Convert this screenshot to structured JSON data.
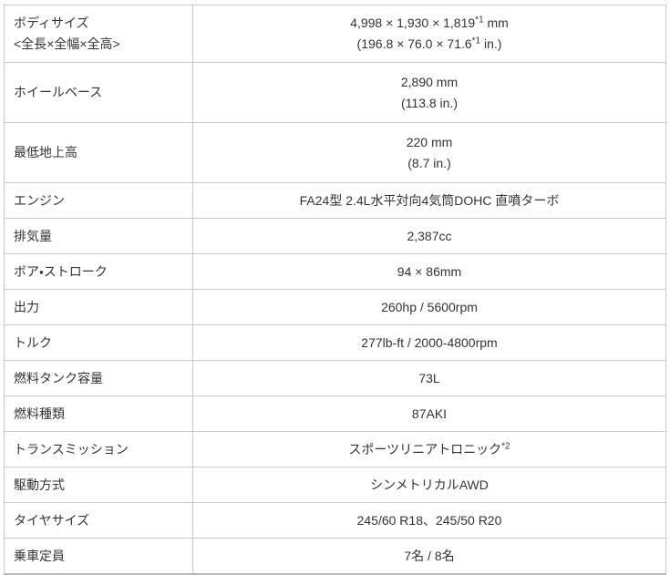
{
  "colors": {
    "border": "#c9c9c9",
    "border_bottom": "#b9b9b9",
    "text": "#333333",
    "background": "#ffffff"
  },
  "table": {
    "rows": [
      {
        "label_lines": [
          "ボディサイズ",
          "<全長×全幅×全高>"
        ],
        "value_lines": [
          {
            "pre": "4,998 × 1,930 × 1,819",
            "sup": "*1",
            "post": " mm"
          },
          {
            "pre": "(196.8 × 76.0 × 71.6",
            "sup": "*1",
            "post": " in.)"
          }
        ]
      },
      {
        "label_lines": [
          "ホイールベース"
        ],
        "value_lines": [
          {
            "pre": "2,890 mm"
          },
          {
            "pre": "(113.8 in.)"
          }
        ]
      },
      {
        "label_lines": [
          "最低地上高"
        ],
        "value_lines": [
          {
            "pre": "220 mm"
          },
          {
            "pre": "(8.7 in.)"
          }
        ]
      },
      {
        "label_lines": [
          "エンジン"
        ],
        "value_lines": [
          {
            "pre": "FA24型 2.4L水平対向4気筒DOHC 直噴ターボ"
          }
        ]
      },
      {
        "label_lines": [
          "排気量"
        ],
        "value_lines": [
          {
            "pre": "2,387cc"
          }
        ]
      },
      {
        "label_lines": [
          "ボア・ストローク"
        ],
        "value_lines": [
          {
            "pre": "94 × 86mm"
          }
        ]
      },
      {
        "label_lines": [
          "出力"
        ],
        "value_lines": [
          {
            "pre": "260hp / 5600rpm"
          }
        ]
      },
      {
        "label_lines": [
          "トルク"
        ],
        "value_lines": [
          {
            "pre": "277lb-ft / 2000-4800rpm"
          }
        ]
      },
      {
        "label_lines": [
          "燃料タンク容量"
        ],
        "value_lines": [
          {
            "pre": "73L"
          }
        ]
      },
      {
        "label_lines": [
          "燃料種類"
        ],
        "value_lines": [
          {
            "pre": "87AKI"
          }
        ]
      },
      {
        "label_lines": [
          "トランスミッション"
        ],
        "value_lines": [
          {
            "pre": "スポーツリニアトロニック",
            "sup": "*2"
          }
        ]
      },
      {
        "label_lines": [
          "駆動方式"
        ],
        "value_lines": [
          {
            "pre": "シンメトリカルAWD"
          }
        ]
      },
      {
        "label_lines": [
          "タイヤサイズ"
        ],
        "value_lines": [
          {
            "pre": "245/60 R18、245/50 R20"
          }
        ]
      },
      {
        "label_lines": [
          "乗車定員"
        ],
        "value_lines": [
          {
            "pre": "7名 / 8名"
          }
        ]
      }
    ]
  }
}
